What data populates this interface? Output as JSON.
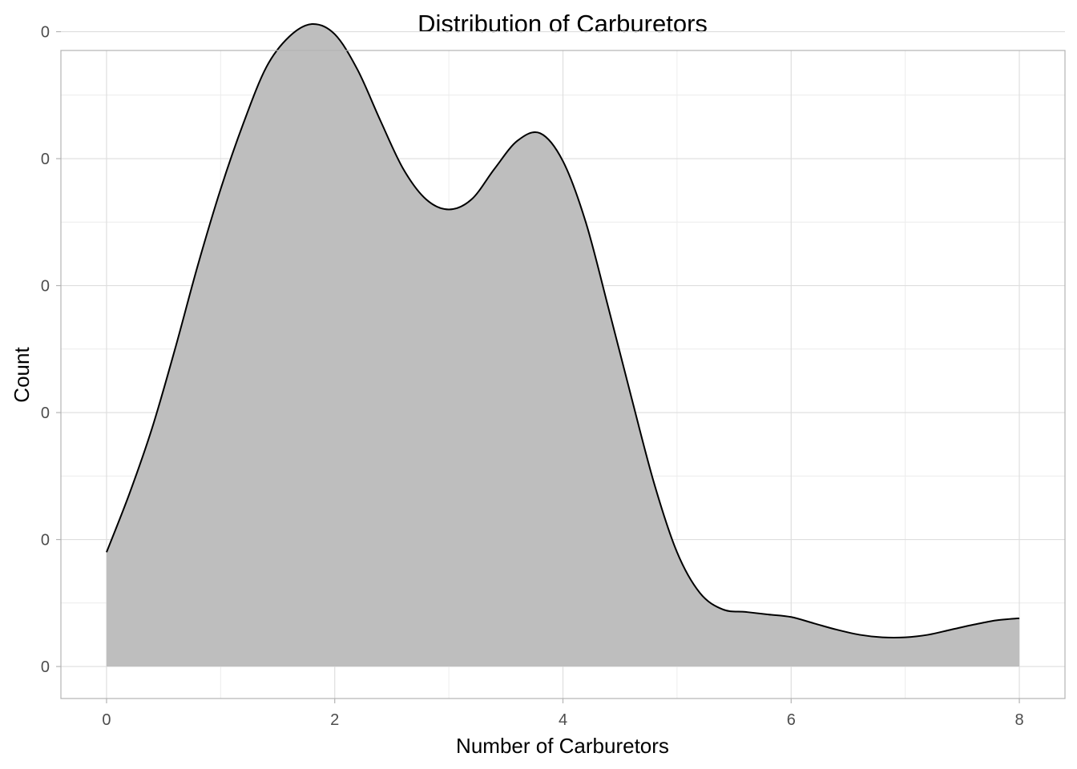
{
  "chart_data": {
    "type": "area",
    "title": "Distribution of Carburetors",
    "xlabel": "Number of Carburetors",
    "ylabel": "Count",
    "xlim": [
      -0.4,
      8.4
    ],
    "ylim": [
      -0.0126,
      0.2426
    ],
    "x_ticks": [
      0,
      2,
      4,
      6,
      8
    ],
    "x_tick_labels": [
      "0",
      "2",
      "4",
      "6",
      "8"
    ],
    "y_ticks": [
      0.0,
      0.05,
      0.1,
      0.15,
      0.2,
      0.25
    ],
    "y_tick_labels": [
      "0",
      "0",
      "0",
      "0",
      "0",
      "0"
    ],
    "grid": true,
    "fill_color": "#bebebe",
    "line_color": "#000000",
    "series": [
      {
        "x": [
          0,
          0.2,
          0.4,
          0.6,
          0.8,
          1.0,
          1.2,
          1.4,
          1.6,
          1.8,
          2.0,
          2.2,
          2.4,
          2.6,
          2.8,
          3.0,
          3.2,
          3.4,
          3.6,
          3.8,
          4.0,
          4.2,
          4.4,
          4.6,
          4.8,
          5.0,
          5.2,
          5.4,
          5.6,
          5.8,
          6.0,
          6.2,
          6.4,
          6.6,
          6.8,
          7.0,
          7.2,
          7.4,
          7.6,
          7.8,
          8.0
        ],
        "y": [
          0.045,
          0.068,
          0.094,
          0.125,
          0.158,
          0.188,
          0.214,
          0.236,
          0.248,
          0.253,
          0.249,
          0.235,
          0.215,
          0.196,
          0.184,
          0.18,
          0.184,
          0.196,
          0.207,
          0.21,
          0.199,
          0.175,
          0.141,
          0.106,
          0.072,
          0.045,
          0.029,
          0.0225,
          0.0215,
          0.0205,
          0.0195,
          0.017,
          0.0145,
          0.0125,
          0.0115,
          0.0115,
          0.0125,
          0.0145,
          0.0165,
          0.0182,
          0.019
        ]
      }
    ]
  }
}
